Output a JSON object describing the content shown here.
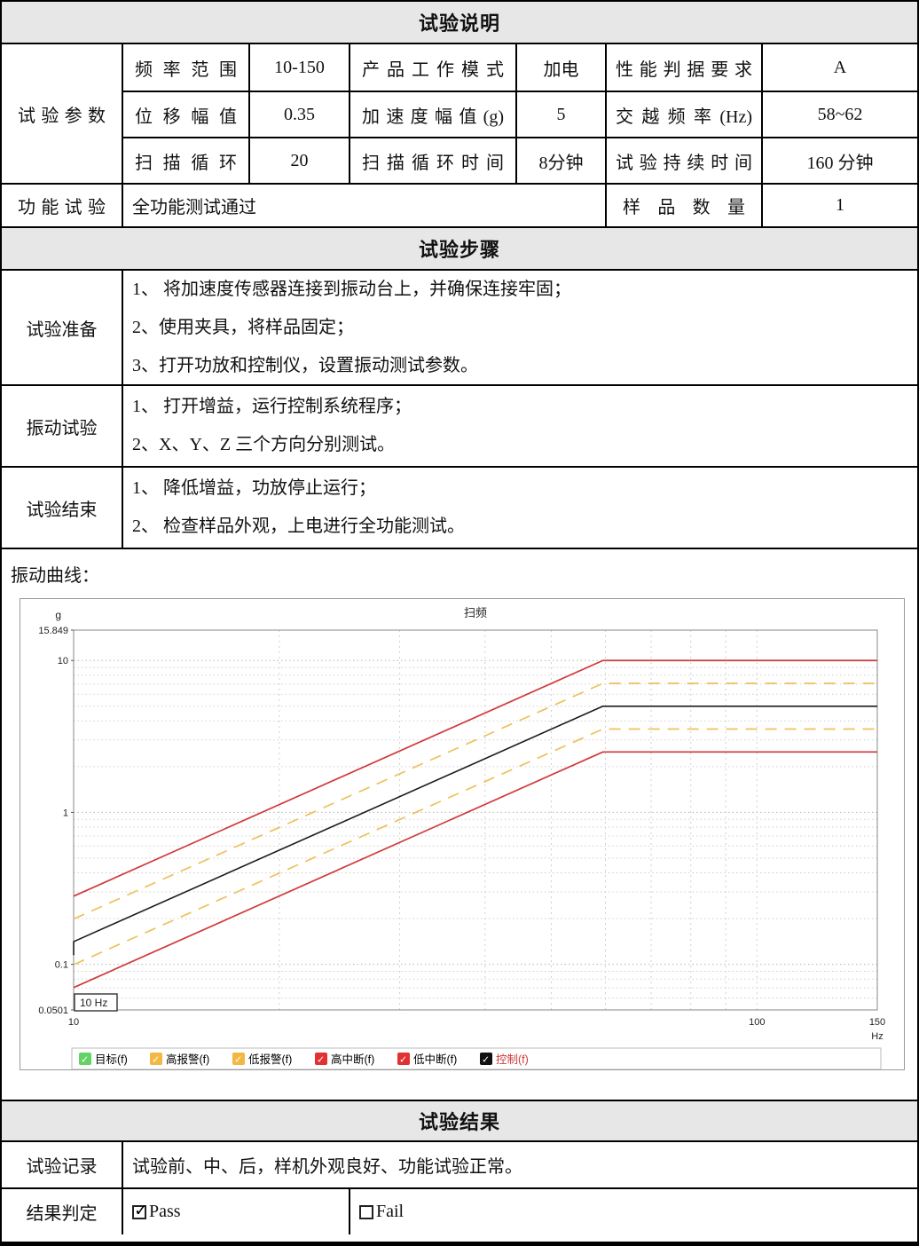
{
  "sections": {
    "s1_title": "试验说明",
    "s2_title": "试验步骤",
    "s3_title": "试验结果",
    "curve_label": "振动曲线："
  },
  "params": {
    "group_label": "试验参数",
    "rows": [
      {
        "l1": "频率范围",
        "v1": "10-150",
        "l2": "产品工作模式",
        "v2": "加电",
        "l3": "性能判据要求",
        "v3": "A"
      },
      {
        "l1": "位移幅值",
        "v1": "0.35",
        "l2": "加速度幅值(g)",
        "v2": "5",
        "l3": "交越频率(Hz)",
        "v3": "58~62"
      },
      {
        "l1": "扫描循环",
        "v1": "20",
        "l2": "扫描循环时间",
        "v2": "8分钟",
        "l3": "试验持续时间",
        "v3": "160 分钟"
      }
    ],
    "function_label": "功能试验",
    "function_value": "全功能测试通过",
    "sample_label": "样品数量",
    "sample_value": "1"
  },
  "steps": [
    {
      "label": "试验准备",
      "items": [
        "1、 将加速度传感器连接到振动台上，并确保连接牢固；",
        "2、使用夹具，将样品固定；",
        "3、打开功放和控制仪，设置振动测试参数。"
      ]
    },
    {
      "label": "振动试验",
      "items": [
        "1、 打开增益，运行控制系统程序；",
        "2、X、Y、Z 三个方向分别测试。"
      ]
    },
    {
      "label": "试验结束",
      "items": [
        "1、 降低增益，功放停止运行；",
        "2、 检查样品外观，上电进行全功能测试。"
      ]
    }
  ],
  "results": {
    "record_label": "试验记录",
    "record_value": "试验前、中、后，样机外观良好、功能试验正常。",
    "verdict_label": "结果判定",
    "pass_label": "Pass",
    "fail_label": "Fail",
    "pass_checked": true,
    "fail_checked": false
  },
  "chart_data": {
    "type": "line",
    "title": "扫频",
    "ylabel": "g",
    "xlabel": "Hz",
    "x_scale": "log",
    "y_scale": "log",
    "xlim": [
      10,
      150
    ],
    "ylim": [
      0.0501,
      15.849
    ],
    "x_tick_labels": [
      "10",
      "100",
      "150"
    ],
    "x_tick_values": [
      10,
      100,
      150
    ],
    "y_tick_labels": [
      "15.849",
      "10",
      "1",
      "0.1",
      "0.0501"
    ],
    "y_tick_values": [
      15.849,
      10,
      1,
      0.1,
      0.0501
    ],
    "cursor_label": "10 Hz",
    "crossover_hz": 59.5,
    "grid_x": [
      20,
      30,
      40,
      50,
      60,
      70,
      80,
      90,
      100,
      150
    ],
    "grid_y": [
      0.06,
      0.07,
      0.08,
      0.09,
      0.1,
      0.2,
      0.3,
      0.4,
      0.5,
      0.6,
      0.7,
      0.8,
      0.9,
      1,
      2,
      3,
      4,
      5,
      6,
      7,
      8,
      9,
      10
    ],
    "series": [
      {
        "name": "高中断(f)",
        "color": "#cf3a3a",
        "dashed": false,
        "width": 1.7,
        "points": [
          [
            10,
            0.281
          ],
          [
            59.5,
            10
          ],
          [
            150,
            10
          ]
        ]
      },
      {
        "name": "高报警(f)",
        "color": "#efc05c",
        "dashed": true,
        "width": 1.7,
        "points": [
          [
            10,
            0.199
          ],
          [
            59.5,
            7.07
          ],
          [
            150,
            7.07
          ]
        ]
      },
      {
        "name": "控制(f)",
        "color": "#1c1c1c",
        "dashed": false,
        "width": 1.6,
        "tail_to": 0.115,
        "points": [
          [
            10,
            0.141
          ],
          [
            59.5,
            5
          ],
          [
            150,
            5
          ]
        ]
      },
      {
        "name": "低报警(f)",
        "color": "#efc05c",
        "dashed": true,
        "width": 1.7,
        "points": [
          [
            10,
            0.0995
          ],
          [
            59.5,
            3.536
          ],
          [
            150,
            3.536
          ]
        ]
      },
      {
        "name": "低中断(f)",
        "color": "#cf3a3a",
        "dashed": false,
        "width": 1.7,
        "points": [
          [
            10,
            0.0703
          ],
          [
            59.5,
            2.5
          ],
          [
            150,
            2.5
          ]
        ]
      }
    ],
    "legend": [
      {
        "label": "目标(f)",
        "box": "#63d463",
        "text": "#000000"
      },
      {
        "label": "高报警(f)",
        "box": "#f2b843",
        "text": "#000000"
      },
      {
        "label": "低报警(f)",
        "box": "#f2b843",
        "text": "#000000"
      },
      {
        "label": "高中断(f)",
        "box": "#e03232",
        "text": "#000000"
      },
      {
        "label": "低中断(f)",
        "box": "#e03232",
        "text": "#000000"
      },
      {
        "label": "控制(f)",
        "box": "#111111",
        "text": "#cf3a3a"
      }
    ],
    "legend_position": "bottom"
  }
}
